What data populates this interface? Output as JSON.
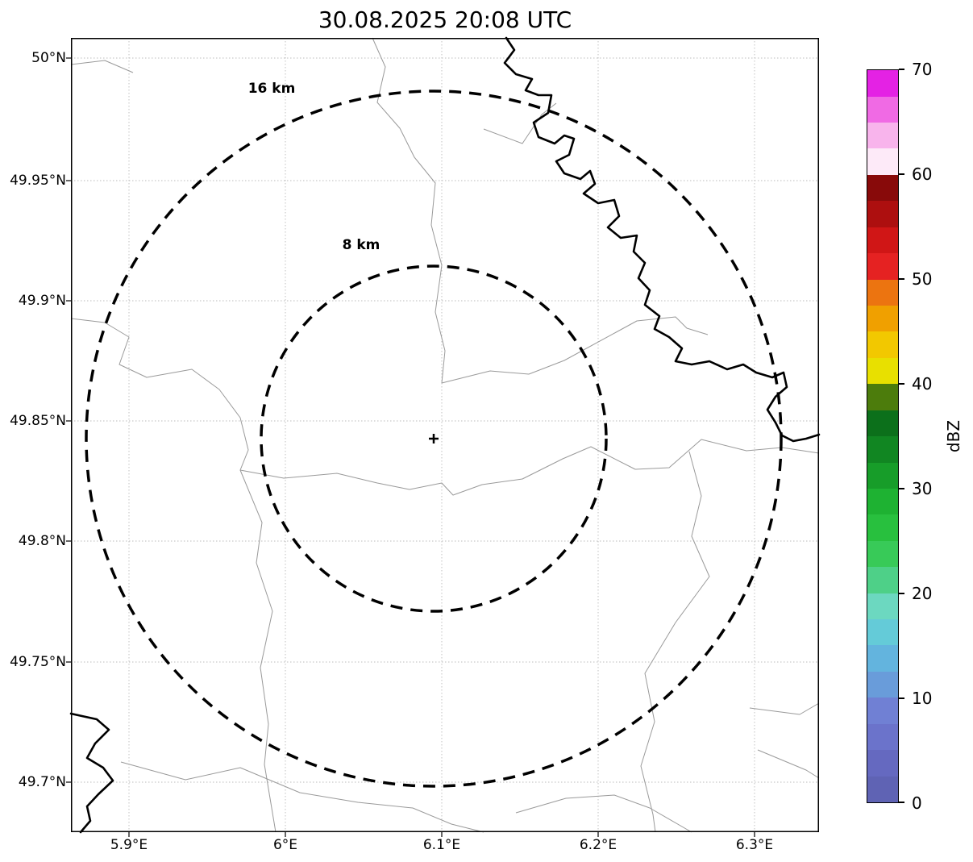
{
  "figure": {
    "title": "30.08.2025 20:08 UTC"
  },
  "map": {
    "ring_labels": {
      "outer": "16 km",
      "inner": "8 km"
    },
    "radar_marker": "+"
  },
  "axes": {
    "x_tick_labels": [
      "5.9°E",
      "6°E",
      "6.1°E",
      "6.2°E",
      "6.3°E"
    ],
    "y_tick_labels": [
      "50°N",
      "49.95°N",
      "49.9°N",
      "49.85°N",
      "49.8°N",
      "49.75°N",
      "49.7°N"
    ]
  },
  "colorbar": {
    "label": "dBZ",
    "tick_labels": [
      "70",
      "60",
      "50",
      "40",
      "30",
      "20",
      "10",
      "0"
    ],
    "colors_bottom_to_top": [
      "#5f63b4",
      "#6569c0",
      "#6b73cb",
      "#7080d4",
      "#699cda",
      "#63b4de",
      "#64cbd8",
      "#6cd8c0",
      "#4ed088",
      "#38ca58",
      "#28c03e",
      "#1eb232",
      "#179d29",
      "#118622",
      "#0c701b",
      "#4c7c0c",
      "#e8e000",
      "#f2c800",
      "#f0a000",
      "#ec7410",
      "#e52222",
      "#d01616",
      "#ad0f0f",
      "#880a0a",
      "#fdeaf8",
      "#f8b4ec",
      "#f06ae4",
      "#e422e4"
    ]
  },
  "chart_data": {
    "type": "heatmap",
    "title": "30.08.2025 20:08 UTC",
    "xlabel": "",
    "ylabel": "",
    "x_axis": {
      "tick_labels": [
        "5.9°E",
        "6°E",
        "6.1°E",
        "6.2°E",
        "6.3°E"
      ],
      "ticks_deg_e": [
        5.9,
        6.0,
        6.1,
        6.2,
        6.3
      ],
      "range_deg_e": [
        5.863,
        6.341
      ]
    },
    "y_axis": {
      "tick_labels": [
        "50°N",
        "49.95°N",
        "49.9°N",
        "49.85°N",
        "49.8°N",
        "49.75°N",
        "49.7°N"
      ],
      "ticks_deg_n": [
        50.0,
        49.95,
        49.9,
        49.85,
        49.8,
        49.75,
        49.7
      ],
      "range_deg_n": [
        49.679,
        50.008
      ]
    },
    "grid": "dotted lat/lon graticule",
    "radar_site_estimate": {
      "lon_deg_e": 6.095,
      "lat_deg_n": 49.842
    },
    "range_rings_km": [
      8,
      16
    ],
    "ring_annotations": [
      "16 km",
      "8 km"
    ],
    "colorbar": {
      "label": "dBZ",
      "min": 0,
      "max": 70,
      "tick_step": 10,
      "segment_step_dbz": 2.5,
      "position": "right"
    },
    "reflectivity_echoes": [],
    "map_overlays": [
      "thin gray administrative boundary lines",
      "thick black river line crossing from top center to east edge and in southwest corner"
    ]
  }
}
